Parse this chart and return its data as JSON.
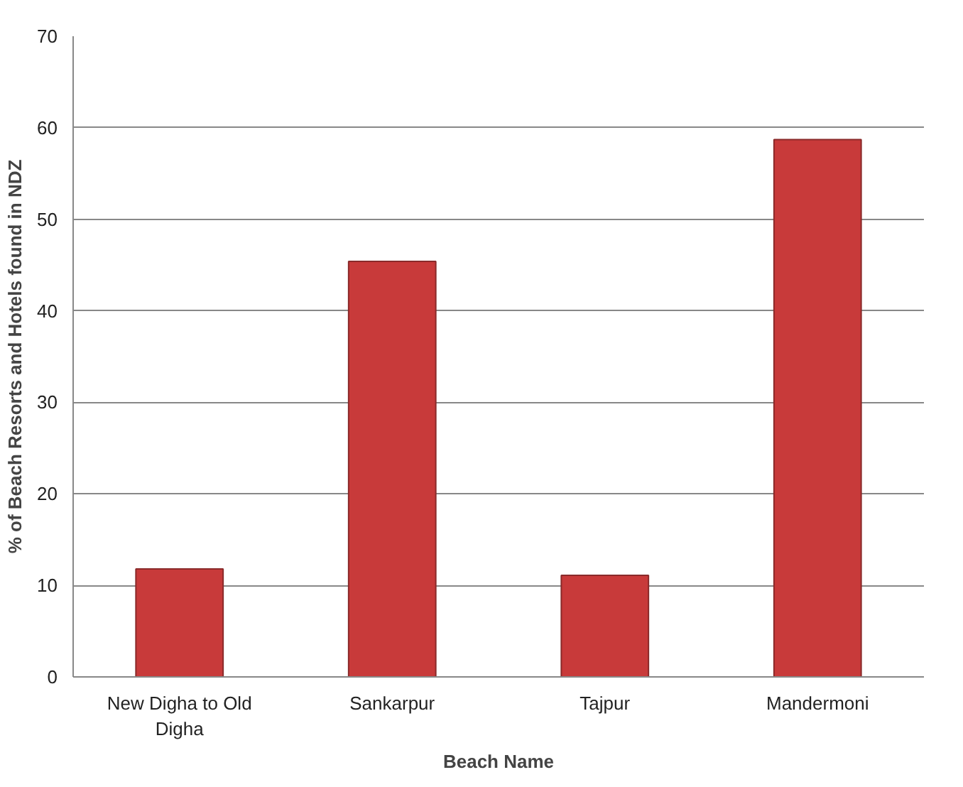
{
  "chart_data": {
    "type": "bar",
    "xlabel": "Beach Name",
    "ylabel": "% of Beach Resorts and Hotels found in NDZ",
    "categories": [
      "New Digha to Old Digha",
      "Sankarpur",
      "Tajpur",
      "Mandermoni"
    ],
    "values": [
      11.8,
      45.4,
      11.1,
      58.7
    ],
    "color": "#c83a3a",
    "ylim": [
      0,
      70
    ],
    "yticks": [
      0,
      10,
      20,
      30,
      40,
      50,
      60,
      70
    ],
    "grid": "y"
  }
}
